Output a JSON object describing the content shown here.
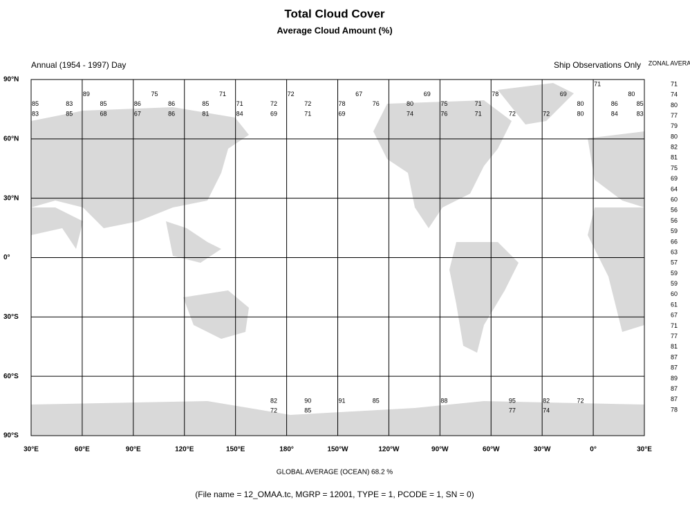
{
  "chart_data": {
    "type": "grid-map",
    "title": "Total Cloud Cover",
    "subtitle": "Average Cloud Amount (%)",
    "period_label": "Annual (1954 - 1997) Day",
    "source_label": "Ship Observations Only",
    "zonal_label": "ZONAL AVERAGE",
    "footer": "GLOBAL AVERAGE (OCEAN)   68.2 %",
    "file_info": "(File name = 12_OMAA.tc, MGRP = 12001, TYPE = 1, PCODE = 1, SN = 0)",
    "xlim": [
      30,
      390
    ],
    "ylim": [
      -90,
      90
    ],
    "xticks": [
      {
        "value": 30,
        "label": "30°E"
      },
      {
        "value": 60,
        "label": "60°E"
      },
      {
        "value": 90,
        "label": "90°E"
      },
      {
        "value": 120,
        "label": "120°E"
      },
      {
        "value": 150,
        "label": "150°E"
      },
      {
        "value": 180,
        "label": "180°"
      },
      {
        "value": 210,
        "label": "150°W"
      },
      {
        "value": 240,
        "label": "120°W"
      },
      {
        "value": 270,
        "label": "90°W"
      },
      {
        "value": 300,
        "label": "60°W"
      },
      {
        "value": 330,
        "label": "30°W"
      },
      {
        "value": 360,
        "label": "0°"
      },
      {
        "value": 390,
        "label": "30°E"
      }
    ],
    "yticks": [
      {
        "value": 90,
        "label": "90°N"
      },
      {
        "value": 60,
        "label": "60°N"
      },
      {
        "value": 30,
        "label": "30°N"
      },
      {
        "value": 0,
        "label": "0°"
      },
      {
        "value": -30,
        "label": "30°S"
      },
      {
        "value": -60,
        "label": "60°S"
      },
      {
        "value": -90,
        "label": "90°S"
      }
    ],
    "zonal_average": [
      71,
      74,
      80,
      77,
      79,
      80,
      82,
      81,
      75,
      69,
      64,
      60,
      56,
      56,
      59,
      66,
      63,
      57,
      59,
      59,
      60,
      61,
      67,
      71,
      77,
      81,
      87,
      87,
      89,
      87,
      87,
      78
    ],
    "rows": [
      {
        "lat": 87.5,
        "cells": [
          [
            0,
            71
          ]
        ]
      },
      {
        "lat": 82.5,
        "cells": [
          [
            60,
            89
          ],
          [
            100,
            75
          ],
          [
            140,
            71
          ],
          [
            180,
            72
          ],
          [
            -140,
            67
          ],
          [
            -100,
            69
          ],
          [
            -60,
            78
          ],
          [
            -20,
            69
          ],
          [
            20,
            80
          ]
        ]
      },
      {
        "lat": 77.5,
        "cells": [
          [
            30,
            85
          ],
          [
            50,
            83
          ],
          [
            70,
            85
          ],
          [
            90,
            86
          ],
          [
            110,
            86
          ],
          [
            130,
            85
          ],
          [
            150,
            71
          ],
          [
            170,
            72
          ],
          [
            -170,
            72
          ],
          [
            -150,
            78
          ],
          [
            -130,
            76
          ],
          [
            -110,
            80
          ],
          [
            -90,
            75
          ],
          [
            -70,
            71
          ],
          [
            -10,
            80
          ],
          [
            10,
            86
          ],
          [
            25,
            85
          ]
        ]
      },
      {
        "lat": 72.5,
        "cells": [
          [
            30,
            83
          ],
          [
            50,
            85
          ],
          [
            70,
            68
          ],
          [
            90,
            67
          ],
          [
            110,
            86
          ],
          [
            130,
            81
          ],
          [
            150,
            84
          ],
          [
            170,
            69
          ],
          [
            -170,
            71
          ],
          [
            -150,
            69
          ],
          [
            -110,
            74
          ],
          [
            -90,
            76
          ],
          [
            -70,
            71
          ],
          [
            -50,
            72
          ],
          [
            -30,
            72
          ],
          [
            -10,
            80
          ],
          [
            10,
            84
          ],
          [
            25,
            83
          ]
        ]
      },
      {
        "lat": -72.5,
        "cells": [
          [
            170,
            82
          ],
          [
            -170,
            90
          ],
          [
            -150,
            91
          ],
          [
            -130,
            85
          ],
          [
            -90,
            88
          ],
          [
            -50,
            95
          ],
          [
            -30,
            82
          ],
          [
            -10,
            72
          ]
        ]
      },
      {
        "lat": -77.5,
        "cells": [
          [
            170,
            72
          ],
          [
            -170,
            85
          ],
          [
            -50,
            77
          ],
          [
            -30,
            74
          ]
        ]
      }
    ],
    "grid": true
  }
}
